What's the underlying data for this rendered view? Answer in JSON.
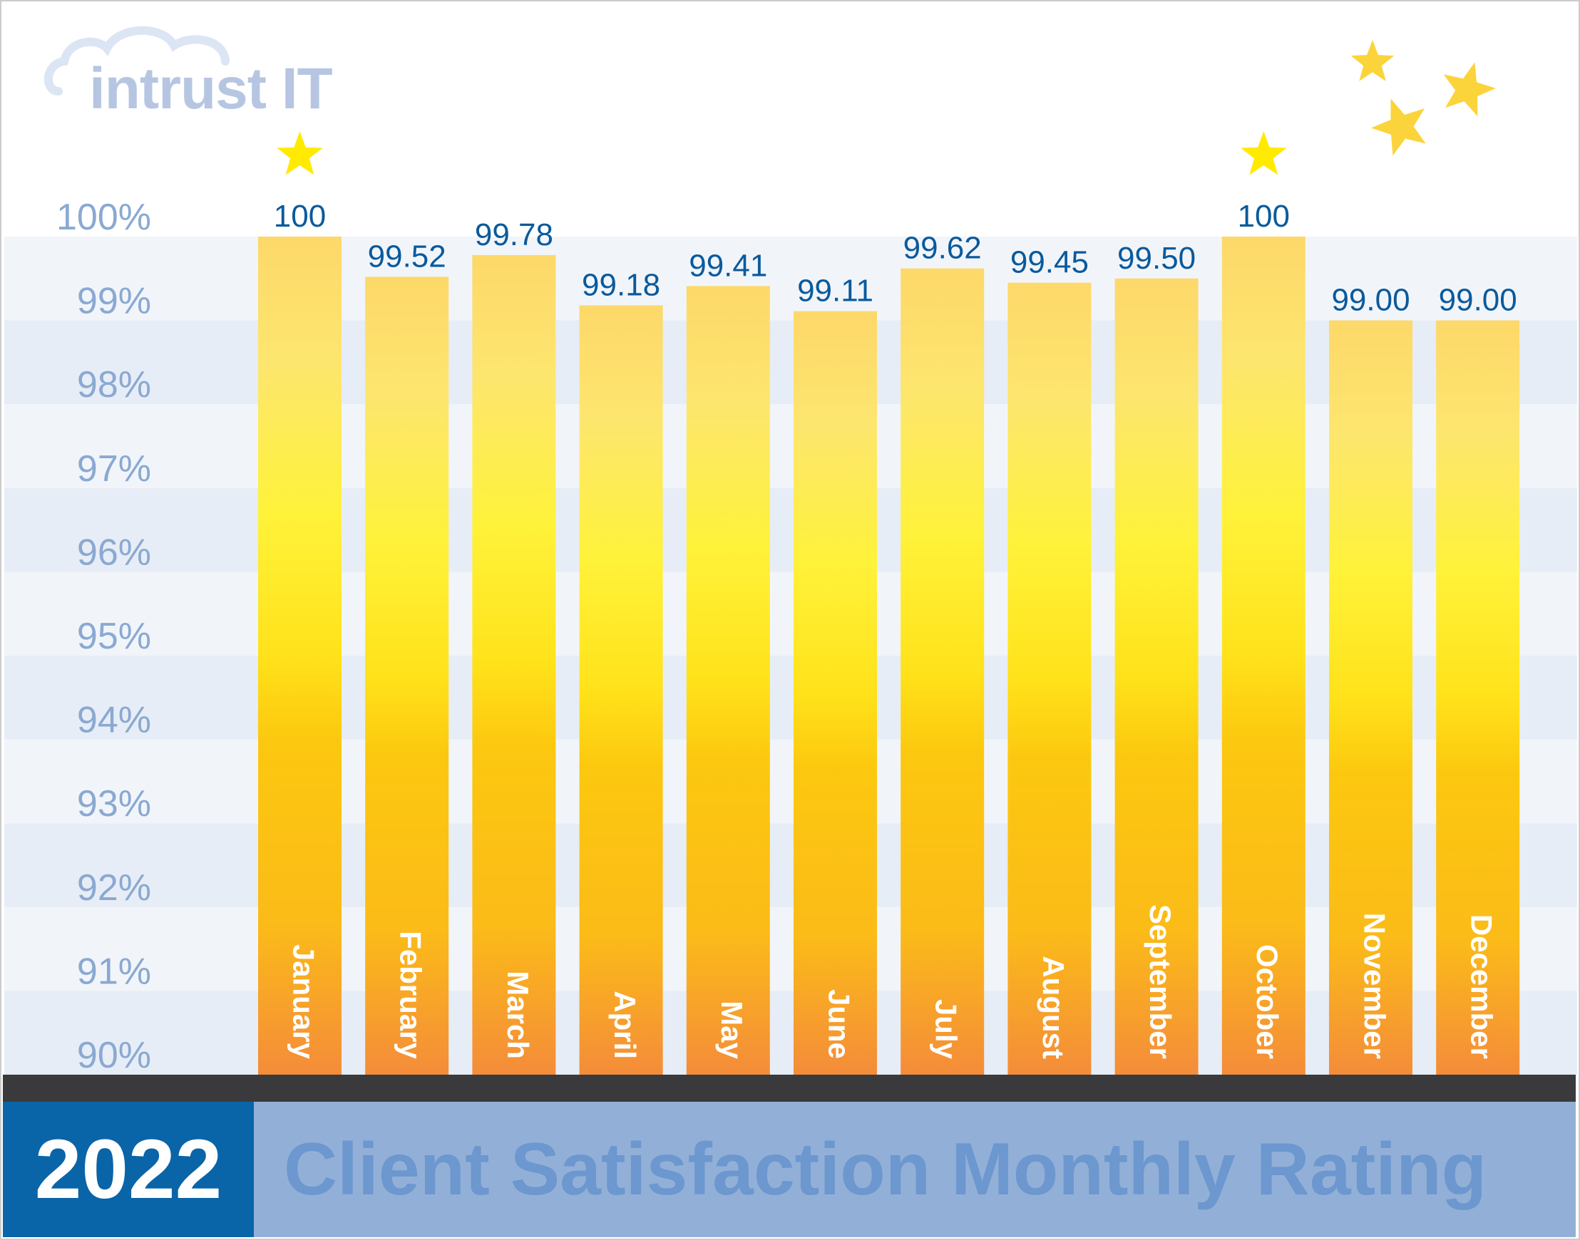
{
  "logo": {
    "text": "intrust IT"
  },
  "footer": {
    "year": "2022",
    "title": "Client Satisfaction Monthly Rating"
  },
  "colors": {
    "value_label": "#0a5a9c",
    "tick_label": "#8aa9d2",
    "bar_top": "#fde06e",
    "bar_mid": "#ffed2e",
    "bar_low": "#fbc40f",
    "bar_bottom": "#f48c3a",
    "star": "#ffea00",
    "deco_star": "#fbd43c"
  },
  "chart_data": {
    "type": "bar",
    "title": "Client Satisfaction Monthly Rating",
    "categories": [
      "January",
      "February",
      "March",
      "April",
      "May",
      "June",
      "July",
      "August",
      "September",
      "October",
      "November",
      "December"
    ],
    "values": [
      100,
      99.52,
      99.78,
      99.18,
      99.41,
      99.11,
      99.62,
      99.45,
      99.5,
      100,
      99.0,
      99.0
    ],
    "value_labels": [
      "100",
      "99.52",
      "99.78",
      "99.18",
      "99.41",
      "99.11",
      "99.62",
      "99.45",
      "99.50",
      "100",
      "99.00",
      "99.00"
    ],
    "starred": [
      "January",
      "October"
    ],
    "ylim": [
      90,
      100
    ],
    "yticks": [
      "90%",
      "91%",
      "92%",
      "93%",
      "94%",
      "95%",
      "96%",
      "97%",
      "98%",
      "99%",
      "100%"
    ],
    "grid": "alternating horizontal bands",
    "legend": "none"
  }
}
